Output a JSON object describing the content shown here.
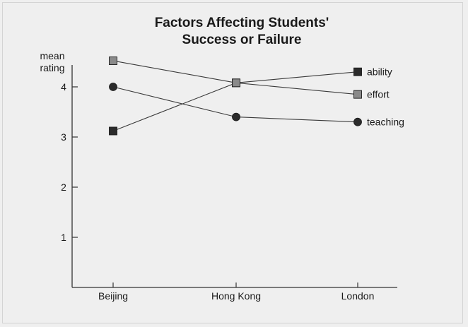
{
  "chart_data": {
    "type": "line",
    "title_lines": [
      "Factors Affecting Students'",
      "Success or Failure"
    ],
    "ylabel_lines": [
      "mean",
      "rating"
    ],
    "xlabel": "",
    "categories": [
      "Beijing",
      "Hong Kong",
      "London"
    ],
    "yticks": [
      "1",
      "2",
      "3",
      "4"
    ],
    "ylim": [
      0,
      4.6
    ],
    "grid": false,
    "legend": "inline labels at right end of each line",
    "series": [
      {
        "name": "ability",
        "marker": "square-dark",
        "color": "#2b2b2b",
        "values": [
          3.12,
          4.08,
          4.3
        ]
      },
      {
        "name": "effort",
        "marker": "square-grey",
        "color": "#8a8a8a",
        "values": [
          4.52,
          4.08,
          3.85
        ]
      },
      {
        "name": "teaching",
        "marker": "circle-dark",
        "color": "#2b2b2b",
        "values": [
          4.0,
          3.4,
          3.3
        ]
      }
    ]
  }
}
